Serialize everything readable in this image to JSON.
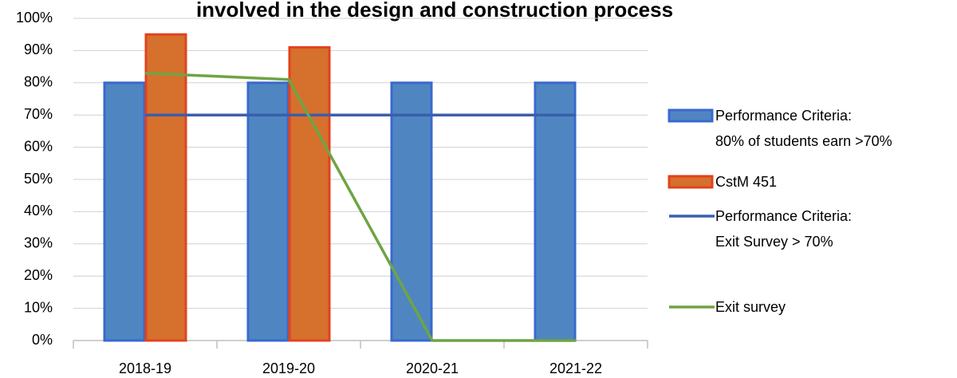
{
  "chart_data": {
    "type": "bar",
    "title": "involved in the design and construction process",
    "categories": [
      "2018-19",
      "2019-20",
      "2020-21",
      "2021-22"
    ],
    "series": [
      {
        "name": "Performance Criteria:\n80% of students earn >70%",
        "type": "bar",
        "color": "#4f86c1",
        "edge": "#3869d0",
        "values": [
          80,
          80,
          80,
          80
        ]
      },
      {
        "name": "CstM 451",
        "type": "bar",
        "color": "#d6702d",
        "edge": "#e2421e",
        "values": [
          95,
          91,
          null,
          null
        ]
      },
      {
        "name": "Performance Criteria:\nExit Survey > 70%",
        "type": "line",
        "color": "#3b5ead",
        "values": [
          70,
          70,
          70,
          70
        ]
      },
      {
        "name": "Exit survey",
        "type": "line",
        "color": "#6fa444",
        "values": [
          83,
          81,
          0,
          0
        ]
      }
    ],
    "ylim": [
      0,
      100
    ],
    "yticks": [
      {
        "value": 0,
        "label": "0%"
      },
      {
        "value": 10,
        "label": "10%"
      },
      {
        "value": 20,
        "label": "20%"
      },
      {
        "value": 30,
        "label": "30%"
      },
      {
        "value": 40,
        "label": "40%"
      },
      {
        "value": 50,
        "label": "50%"
      },
      {
        "value": 60,
        "label": "60%"
      },
      {
        "value": 70,
        "label": "70%"
      },
      {
        "value": 80,
        "label": "80%"
      },
      {
        "value": 90,
        "label": "90%"
      },
      {
        "value": 100,
        "label": "100%"
      }
    ],
    "grid": true,
    "legend": "right"
  }
}
